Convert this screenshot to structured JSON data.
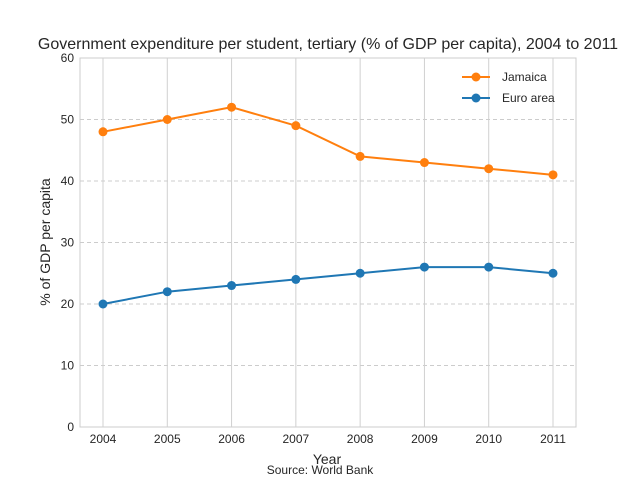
{
  "chart_data": {
    "type": "line",
    "title": "Government expenditure per student, tertiary (% of GDP per capita), 2004 to 2011",
    "xlabel": "Year",
    "ylabel": "% of GDP per capita",
    "source": "Source: World Bank",
    "x": [
      2004,
      2005,
      2006,
      2007,
      2008,
      2009,
      2010,
      2011
    ],
    "ylim": [
      0,
      60
    ],
    "yticks": [
      0,
      10,
      20,
      30,
      40,
      50,
      60
    ],
    "grid": true,
    "legend_position": "top-right",
    "series": [
      {
        "name": "Jamaica",
        "color": "#ff7f0e",
        "values": [
          48,
          50,
          52,
          49,
          44,
          43,
          42,
          41
        ]
      },
      {
        "name": "Euro area",
        "color": "#1f77b4",
        "values": [
          20,
          22,
          23,
          24,
          25,
          26,
          26,
          25
        ]
      }
    ]
  }
}
